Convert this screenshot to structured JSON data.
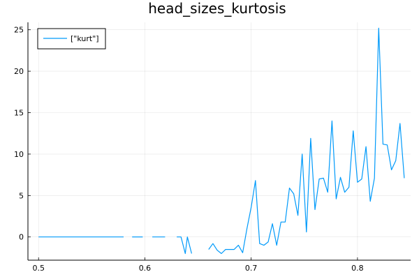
{
  "chart_data": {
    "type": "line",
    "title": "head_sizes_kurtosis",
    "xlabel": "",
    "ylabel": "",
    "xlim": [
      0.49,
      0.85
    ],
    "ylim": [
      -2.8,
      25.9
    ],
    "xticks": [
      0.5,
      0.6,
      0.7,
      0.8
    ],
    "xtick_labels": [
      "0.5",
      "0.6",
      "0.7",
      "0.8"
    ],
    "yticks": [
      0,
      5,
      10,
      15,
      20,
      25
    ],
    "ytick_labels": [
      "0",
      "5",
      "10",
      "15",
      "20",
      "25"
    ],
    "grid": true,
    "legend_position": "top-left",
    "color": "#009AFA",
    "series": [
      {
        "name": "[\"kurt\"]",
        "segments": [
          {
            "x": [
              0.5,
              0.58
            ],
            "y": [
              0.0,
              0.0
            ]
          },
          {
            "x": [
              0.588,
              0.598
            ],
            "y": [
              0.0,
              0.0
            ]
          },
          {
            "x": [
              0.607,
              0.619
            ],
            "y": [
              0.0,
              0.0
            ]
          },
          {
            "x": [
              0.63,
              0.634,
              0.638,
              0.64,
              0.644
            ],
            "y": [
              0.0,
              0.0,
              -2.0,
              0.0,
              -2.0
            ]
          },
          {
            "x": [
              0.66,
              0.664,
              0.668,
              0.672,
              0.676,
              0.68,
              0.684,
              0.688,
              0.692,
              0.696,
              0.7,
              0.704,
              0.708,
              0.712,
              0.716,
              0.72,
              0.724,
              0.728,
              0.732,
              0.736,
              0.74,
              0.744,
              0.748,
              0.752,
              0.756,
              0.76,
              0.764,
              0.768,
              0.772,
              0.776,
              0.78,
              0.784,
              0.788,
              0.792,
              0.796,
              0.8,
              0.804,
              0.808,
              0.812,
              0.816,
              0.82,
              0.824,
              0.828,
              0.832,
              0.836,
              0.84,
              0.844
            ],
            "y": [
              -1.5,
              -0.8,
              -1.6,
              -2.0,
              -1.5,
              -1.5,
              -1.5,
              -1.0,
              -1.9,
              1.0,
              3.6,
              6.8,
              -0.8,
              -1.0,
              -0.6,
              1.6,
              -1.0,
              1.8,
              1.8,
              5.9,
              5.2,
              2.6,
              10.0,
              0.6,
              11.9,
              3.3,
              7.0,
              7.1,
              5.4,
              14.0,
              4.6,
              7.2,
              5.4,
              6.0,
              12.8,
              6.6,
              7.0,
              10.9,
              4.3,
              7.1,
              25.2,
              11.2,
              11.1,
              8.1,
              9.2,
              13.7,
              7.1
            ]
          }
        ]
      }
    ]
  }
}
